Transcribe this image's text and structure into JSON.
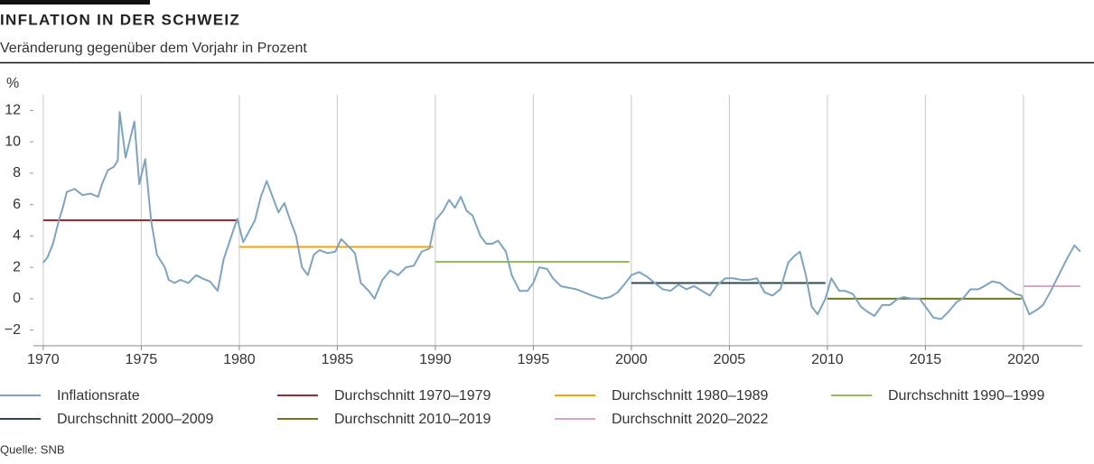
{
  "chart_data": {
    "type": "line",
    "title": "INFLATION IN DER SCHWEIZ",
    "subtitle": "Veränderung gegenüber dem Vorjahr in Prozent",
    "ylabel": "%",
    "source": "Quelle: SNB",
    "xlim": [
      1969.5,
      2023
    ],
    "xticks": [
      1970,
      1975,
      1980,
      1985,
      1990,
      1995,
      2000,
      2005,
      2010,
      2015,
      2020
    ],
    "ylim": [
      -3,
      13
    ],
    "yticks": [
      {
        "value": -2,
        "label": "−2"
      },
      0,
      2,
      4,
      6,
      8,
      10,
      12
    ],
    "grid": "x",
    "series": [
      {
        "name": "Inflationsrate",
        "color": "#7fa4c0",
        "x": [
          1970.0,
          1970.2,
          1970.5,
          1970.8,
          1971.0,
          1971.2,
          1971.6,
          1972.0,
          1972.4,
          1972.8,
          1973.0,
          1973.3,
          1973.6,
          1973.8,
          1973.9,
          1974.2,
          1974.4,
          1974.65,
          1974.9,
          1975.2,
          1975.5,
          1975.8,
          1976.2,
          1976.4,
          1976.7,
          1977.0,
          1977.4,
          1977.8,
          1978.1,
          1978.5,
          1978.9,
          1979.2,
          1979.6,
          1979.9,
          1980.2,
          1980.5,
          1980.8,
          1981.1,
          1981.4,
          1981.7,
          1982.0,
          1982.3,
          1982.6,
          1982.9,
          1983.2,
          1983.5,
          1983.8,
          1984.1,
          1984.5,
          1984.9,
          1985.2,
          1985.6,
          1985.9,
          1986.2,
          1986.6,
          1986.9,
          1987.3,
          1987.7,
          1988.1,
          1988.5,
          1988.9,
          1989.3,
          1989.7,
          1990.0,
          1990.4,
          1990.7,
          1991.0,
          1991.3,
          1991.6,
          1991.9,
          1992.3,
          1992.6,
          1992.9,
          1993.2,
          1993.6,
          1993.9,
          1994.3,
          1994.7,
          1995.0,
          1995.3,
          1995.7,
          1996.0,
          1996.4,
          1996.8,
          1997.2,
          1997.6,
          1998.0,
          1998.5,
          1998.9,
          1999.3,
          1999.7,
          2000.0,
          2000.4,
          2000.8,
          2001.2,
          2001.6,
          2002.0,
          2002.4,
          2002.8,
          2003.2,
          2003.6,
          2004.0,
          2004.4,
          2004.8,
          2005.2,
          2005.6,
          2006.0,
          2006.4,
          2006.8,
          2007.2,
          2007.6,
          2008.0,
          2008.3,
          2008.6,
          2008.9,
          2009.2,
          2009.5,
          2009.9,
          2010.2,
          2010.6,
          2010.9,
          2011.3,
          2011.7,
          2012.0,
          2012.4,
          2012.8,
          2013.2,
          2013.6,
          2013.9,
          2014.3,
          2014.7,
          2015.0,
          2015.4,
          2015.8,
          2016.2,
          2016.6,
          2016.9,
          2017.3,
          2017.7,
          2018.0,
          2018.4,
          2018.8,
          2019.2,
          2019.6,
          2019.9,
          2020.3,
          2020.7,
          2021.0,
          2021.4,
          2021.8,
          2022.2,
          2022.6,
          2022.9
        ],
        "values": [
          2.3,
          2.6,
          3.5,
          5.0,
          5.8,
          6.8,
          7.0,
          6.6,
          6.7,
          6.5,
          7.3,
          8.2,
          8.4,
          8.8,
          11.9,
          9.0,
          10.0,
          11.3,
          7.3,
          8.9,
          5.0,
          2.8,
          2.0,
          1.2,
          1.0,
          1.2,
          1.0,
          1.5,
          1.3,
          1.1,
          0.5,
          2.5,
          4.0,
          5.1,
          3.6,
          4.3,
          5.0,
          6.5,
          7.5,
          6.5,
          5.5,
          6.1,
          5.0,
          4.0,
          2.0,
          1.5,
          2.8,
          3.1,
          2.9,
          3.0,
          3.8,
          3.3,
          2.9,
          1.0,
          0.5,
          0.0,
          1.2,
          1.8,
          1.5,
          2.0,
          2.1,
          3.0,
          3.2,
          5.0,
          5.6,
          6.3,
          5.8,
          6.5,
          5.6,
          5.3,
          4.0,
          3.5,
          3.5,
          3.7,
          3.0,
          1.5,
          0.5,
          0.5,
          1.0,
          2.0,
          1.9,
          1.3,
          0.8,
          0.7,
          0.6,
          0.4,
          0.2,
          0.0,
          0.1,
          0.4,
          1.0,
          1.5,
          1.7,
          1.4,
          1.0,
          0.6,
          0.5,
          0.9,
          0.6,
          0.8,
          0.5,
          0.2,
          0.9,
          1.3,
          1.3,
          1.2,
          1.2,
          1.3,
          0.4,
          0.2,
          0.6,
          2.3,
          2.7,
          3.0,
          1.5,
          -0.5,
          -1.0,
          0.0,
          1.3,
          0.5,
          0.5,
          0.3,
          -0.5,
          -0.8,
          -1.1,
          -0.4,
          -0.4,
          0.0,
          0.1,
          0.0,
          0.0,
          -0.5,
          -1.2,
          -1.3,
          -0.8,
          -0.2,
          0.0,
          0.6,
          0.6,
          0.8,
          1.1,
          1.0,
          0.6,
          0.3,
          0.2,
          -1.0,
          -0.7,
          -0.4,
          0.5,
          1.5,
          2.5,
          3.4,
          3.0
        ]
      },
      {
        "name": "Durchschnitt 1970–1979",
        "color": "#9b2a35",
        "x": [
          1970,
          1979.9
        ],
        "values": [
          5.0,
          5.0
        ]
      },
      {
        "name": "Durchschnitt 1980–1989",
        "color": "#f0a500",
        "x": [
          1980,
          1989.9
        ],
        "values": [
          3.3,
          3.3
        ]
      },
      {
        "name": "Durchschnitt 1990–1999",
        "color": "#8fbf5a",
        "x": [
          1990,
          1999.9
        ],
        "values": [
          2.35,
          2.35
        ]
      },
      {
        "name": "Durchschnitt 2000–2009",
        "color": "#2f4a4a",
        "x": [
          2000,
          2009.9
        ],
        "values": [
          1.0,
          1.0
        ]
      },
      {
        "name": "Durchschnitt 2010–2019",
        "color": "#6b7a1f",
        "x": [
          2010,
          2019.9
        ],
        "values": [
          0.0,
          0.0
        ]
      },
      {
        "name": "Durchschnitt 2020–2022",
        "color": "#d9a5c8",
        "x": [
          2020,
          2022.9
        ],
        "values": [
          0.8,
          0.8
        ]
      }
    ]
  }
}
